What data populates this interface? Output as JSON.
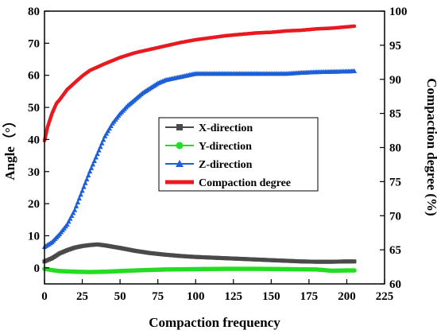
{
  "chart_data": {
    "type": "line",
    "title": "",
    "xlabel": "Compaction frequency",
    "ylabel_left": "Angle（°）",
    "ylabel_right": "Compaction degree (%)",
    "xlim": [
      0,
      225
    ],
    "ylim_left": [
      -5,
      80
    ],
    "ylim_right": [
      60,
      100
    ],
    "xticks": [
      "0",
      "25",
      "50",
      "75",
      "100",
      "125",
      "150",
      "175",
      "200",
      "225"
    ],
    "yticks_left": [
      "0",
      "10",
      "20",
      "30",
      "40",
      "50",
      "60",
      "70",
      "80"
    ],
    "yticks_right": [
      "60",
      "65",
      "70",
      "75",
      "80",
      "85",
      "90",
      "95",
      "100"
    ],
    "grid": false,
    "legend_position": "center-right",
    "series": [
      {
        "name": "X-direction",
        "axis": "left",
        "color": "#4a4a4a",
        "marker": "square",
        "x": [
          0,
          5,
          10,
          15,
          20,
          25,
          30,
          35,
          40,
          50,
          60,
          70,
          80,
          90,
          100,
          120,
          140,
          160,
          170,
          180,
          190,
          200,
          205
        ],
        "y": [
          2.0,
          3.0,
          4.5,
          5.5,
          6.3,
          6.8,
          7.1,
          7.3,
          7.0,
          6.2,
          5.3,
          4.6,
          4.1,
          3.7,
          3.4,
          3.0,
          2.6,
          2.2,
          2.0,
          1.9,
          1.9,
          2.0,
          2.0
        ]
      },
      {
        "name": "Y-direction",
        "axis": "left",
        "color": "#22dd22",
        "marker": "circle",
        "x": [
          0,
          5,
          10,
          20,
          30,
          40,
          50,
          60,
          80,
          100,
          120,
          140,
          160,
          180,
          190,
          200,
          205
        ],
        "y": [
          -0.3,
          -0.7,
          -1.0,
          -1.2,
          -1.3,
          -1.2,
          -1.0,
          -0.8,
          -0.5,
          -0.4,
          -0.3,
          -0.3,
          -0.4,
          -0.5,
          -0.9,
          -0.8,
          -0.8
        ]
      },
      {
        "name": "Z-direction",
        "axis": "left",
        "color": "#1e5fd8",
        "marker": "triangle",
        "x": [
          0,
          5,
          10,
          15,
          20,
          25,
          30,
          35,
          40,
          45,
          50,
          55,
          60,
          65,
          70,
          75,
          80,
          85,
          90,
          95,
          100,
          105,
          110,
          115,
          120,
          130,
          140,
          150,
          160,
          170,
          180,
          190,
          200,
          205
        ],
        "y": [
          6.5,
          8.0,
          10.5,
          13.5,
          18.0,
          24.0,
          30.0,
          35.5,
          41.0,
          45.0,
          48.0,
          50.5,
          52.5,
          54.5,
          56.0,
          57.5,
          58.5,
          59.0,
          59.5,
          60.0,
          60.5,
          60.5,
          60.5,
          60.5,
          60.5,
          60.5,
          60.5,
          60.5,
          60.5,
          60.8,
          61.0,
          61.1,
          61.2,
          61.3
        ]
      },
      {
        "name": "Compaction degree",
        "axis": "right",
        "color": "#e8191f",
        "marker": "none",
        "x": [
          0,
          2,
          5,
          8,
          10,
          15,
          20,
          25,
          30,
          35,
          40,
          50,
          60,
          70,
          80,
          90,
          100,
          110,
          120,
          130,
          140,
          150,
          160,
          170,
          180,
          190,
          200,
          205
        ],
        "y": [
          81.0,
          83.0,
          85.0,
          86.5,
          87.0,
          88.5,
          89.5,
          90.5,
          91.3,
          91.8,
          92.3,
          93.2,
          93.9,
          94.4,
          94.9,
          95.4,
          95.8,
          96.1,
          96.4,
          96.6,
          96.8,
          96.9,
          97.1,
          97.2,
          97.4,
          97.5,
          97.7,
          97.8
        ]
      }
    ]
  }
}
